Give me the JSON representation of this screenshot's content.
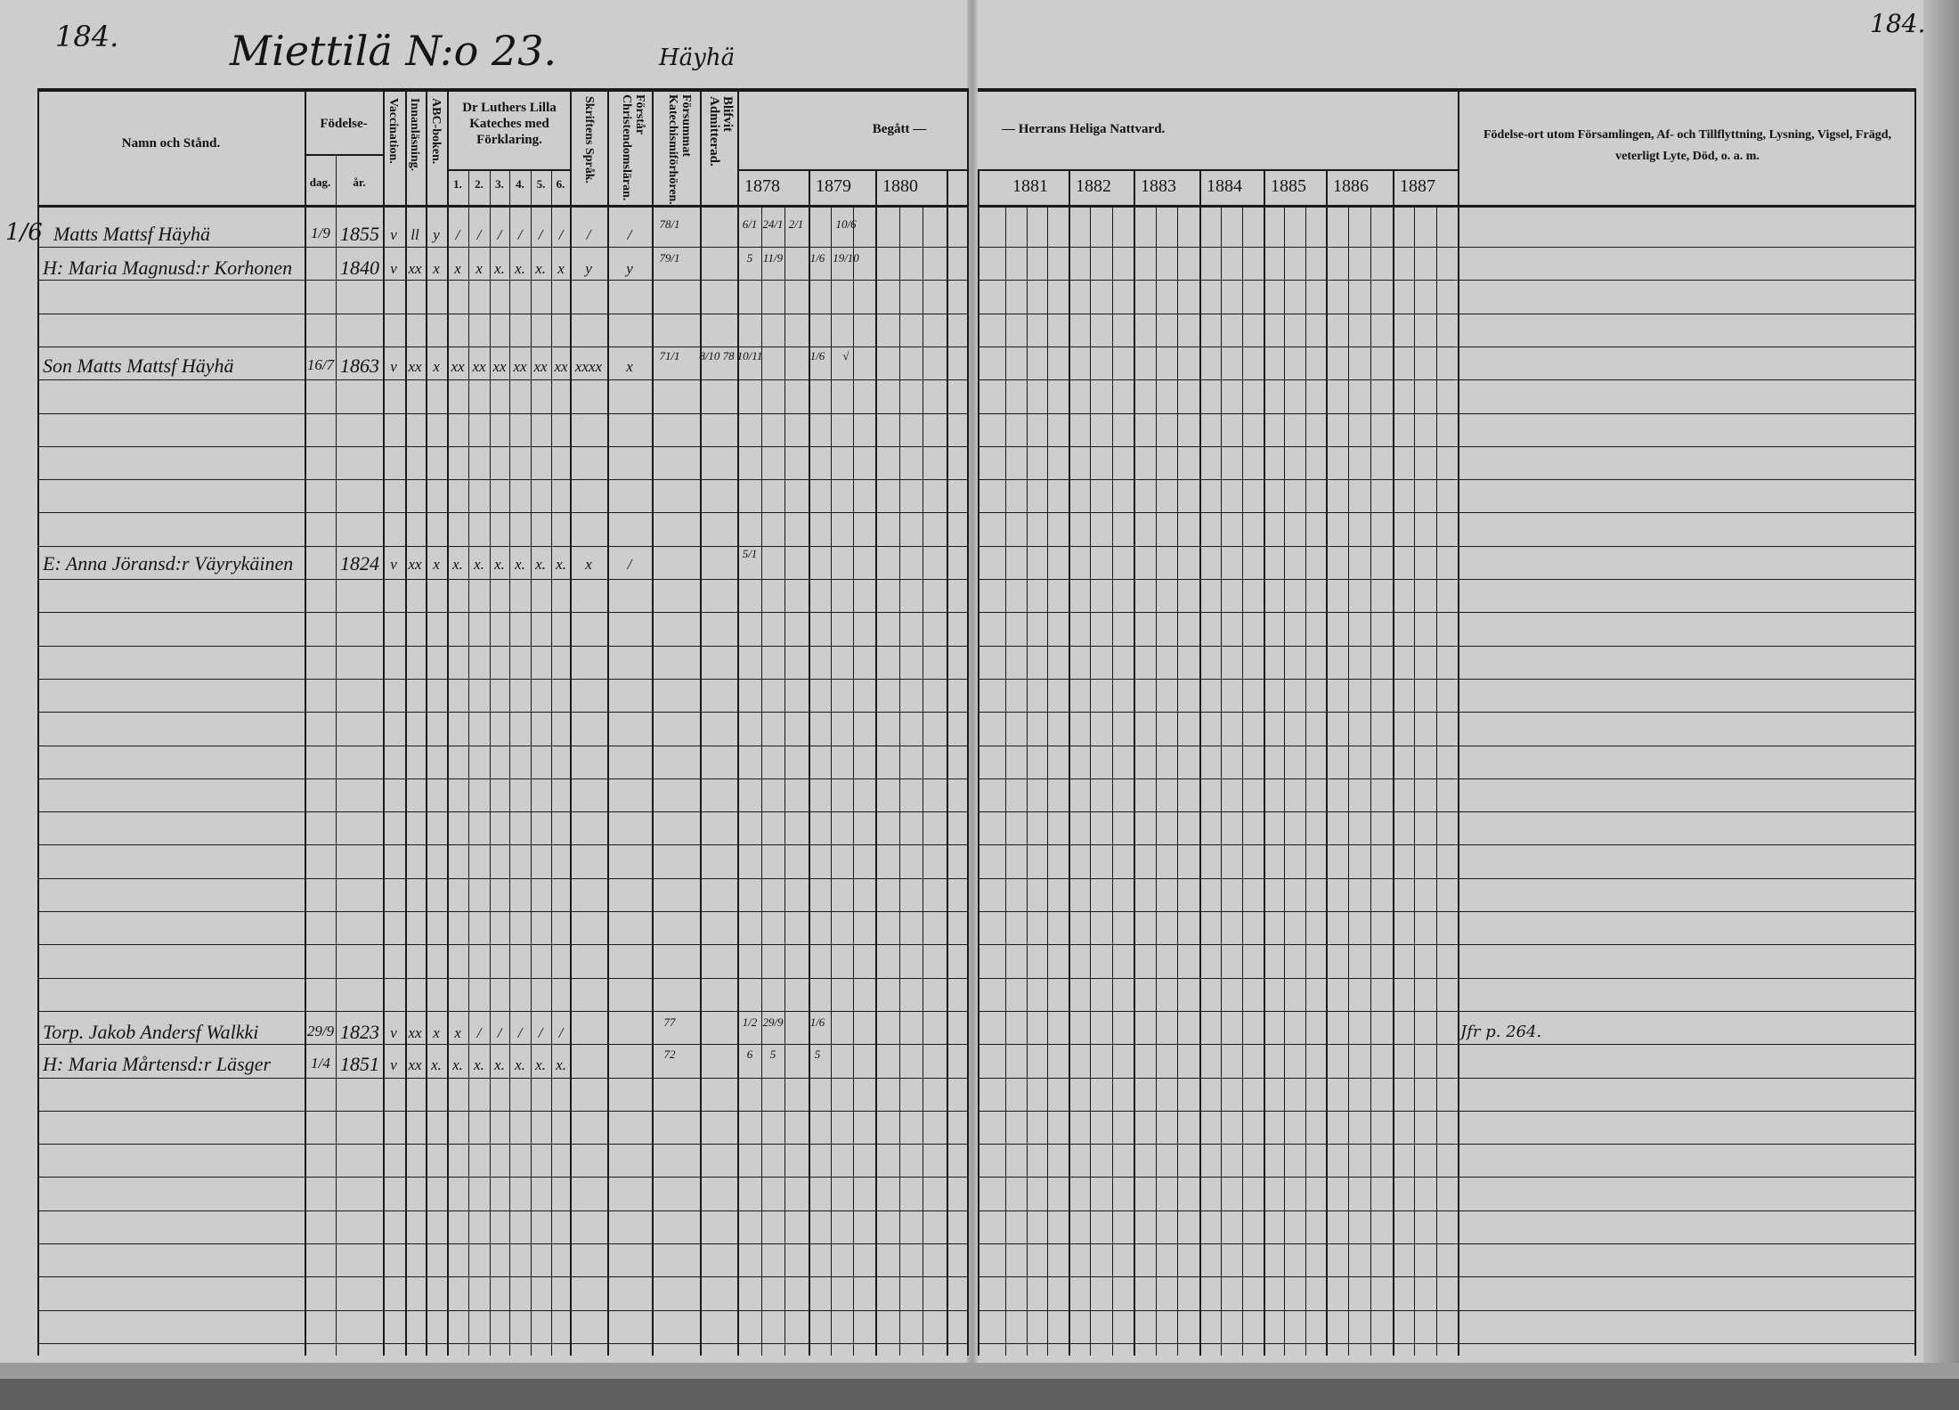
{
  "document": {
    "page_left": "184.",
    "page_right": "184.",
    "title": "Miettilä N:o 23.",
    "subtitle": "Häyhä",
    "margin_note": "1/6"
  },
  "headers": {
    "name": "Namn och Stånd.",
    "birth": "Födelse-",
    "day": "dag.",
    "year": "år.",
    "vaccination": "Vaccination.",
    "reading": "Innanläsning.",
    "abc": "ABC-boken.",
    "catechism": "Dr Luthers Lilla Kateches med Förklaring.",
    "catechism_parts": [
      "1.",
      "2.",
      "3.",
      "4.",
      "5.",
      "6."
    ],
    "scripture": "Skriftens Språk.",
    "understands": "Förstår Christendomsläran.",
    "missed": "Försummat Katechismiförhören.",
    "admitted": "Blifvit Admitterad.",
    "communion_left": "Begått —",
    "communion_right": "— Herrans Heliga Nattvard.",
    "years": [
      "1878",
      "1879",
      "1880",
      "1881",
      "1882",
      "1883",
      "1884",
      "1885",
      "1886",
      "1887"
    ],
    "remarks": "Födelse-ort utom Församlingen, Af- och Tillflyttning, Lysning, Vigsel, Frägd, veterligt Lyte, Död, o. a. m."
  },
  "entries": [
    {
      "name": "Matts Mattsf Häyhä",
      "day": "1/9",
      "year": "1855",
      "marks": {
        "vacc": "v",
        "read": "ll",
        "abc": "y",
        "c1": "/",
        "c2": "/",
        "c3": "/",
        "c4": "/",
        "c5": "/",
        "c6": "/",
        "scr": "/",
        "und": "/",
        "miss": "78/1",
        "y78a": "6/1",
        "y78b": "24/1",
        "y78c": "2/1",
        "y79b": "10/6"
      }
    },
    {
      "name": "H: Maria Magnusd:r Korhonen",
      "day": "",
      "year": "1840",
      "marks": {
        "vacc": "v",
        "read": "xx",
        "abc": "x",
        "c1": "x",
        "c2": "x",
        "c3": "x.",
        "c4": "x.",
        "c5": "x.",
        "c6": "x",
        "scr": "y",
        "und": "y",
        "miss": "79/1",
        "y78a": "5",
        "y78b": "11/9",
        "y79a": "1/6",
        "y79b": "19/10"
      }
    },
    {
      "name": "Son Matts Mattsf Häyhä",
      "day": "16/7",
      "year": "1863",
      "marks": {
        "vacc": "v",
        "read": "xx",
        "abc": "x",
        "c1": "xx",
        "c2": "xx",
        "c3": "xx",
        "c4": "xx",
        "c5": "xx",
        "c6": "xx",
        "scr": "xxxx",
        "und": "x",
        "miss": "71/1",
        "adm": "8/10 78",
        "y78a": "10/11",
        "y79a": "1/6",
        "y79b": "√"
      }
    },
    {
      "name": "E: Anna Jöransd:r Väyrykäinen",
      "day": "",
      "year": "1824",
      "marks": {
        "vacc": "v",
        "read": "xx",
        "abc": "x",
        "c1": "x.",
        "c2": "x.",
        "c3": "x.",
        "c4": "x.",
        "c5": "x.",
        "c6": "x.",
        "scr": "x",
        "und": "/",
        "y78a": "5/1"
      }
    },
    {
      "name": "Torp. Jakob Andersf Walkki",
      "day": "29/9",
      "year": "1823",
      "marks": {
        "vacc": "v",
        "read": "xx",
        "abc": "x",
        "c1": "x",
        "c2": "/",
        "c3": "/",
        "c4": "/",
        "c5": "/",
        "c6": "/",
        "miss": "77",
        "y78a": "1/2",
        "y78b": "29/9",
        "y79a": "1/6"
      }
    },
    {
      "name": "H: Maria Mårtensd:r Läsger",
      "day": "1/4",
      "year": "1851",
      "marks": {
        "vacc": "v",
        "read": "xx",
        "abc": "x.",
        "c1": "x.",
        "c2": "x.",
        "c3": "x.",
        "c4": "x.",
        "c5": "x.",
        "c6": "x.",
        "miss": "72",
        "y78a": "6",
        "y78b": "5",
        "y79a": "5"
      }
    }
  ],
  "remarks_entries": [
    {
      "text": "Jfr p. 264."
    }
  ]
}
